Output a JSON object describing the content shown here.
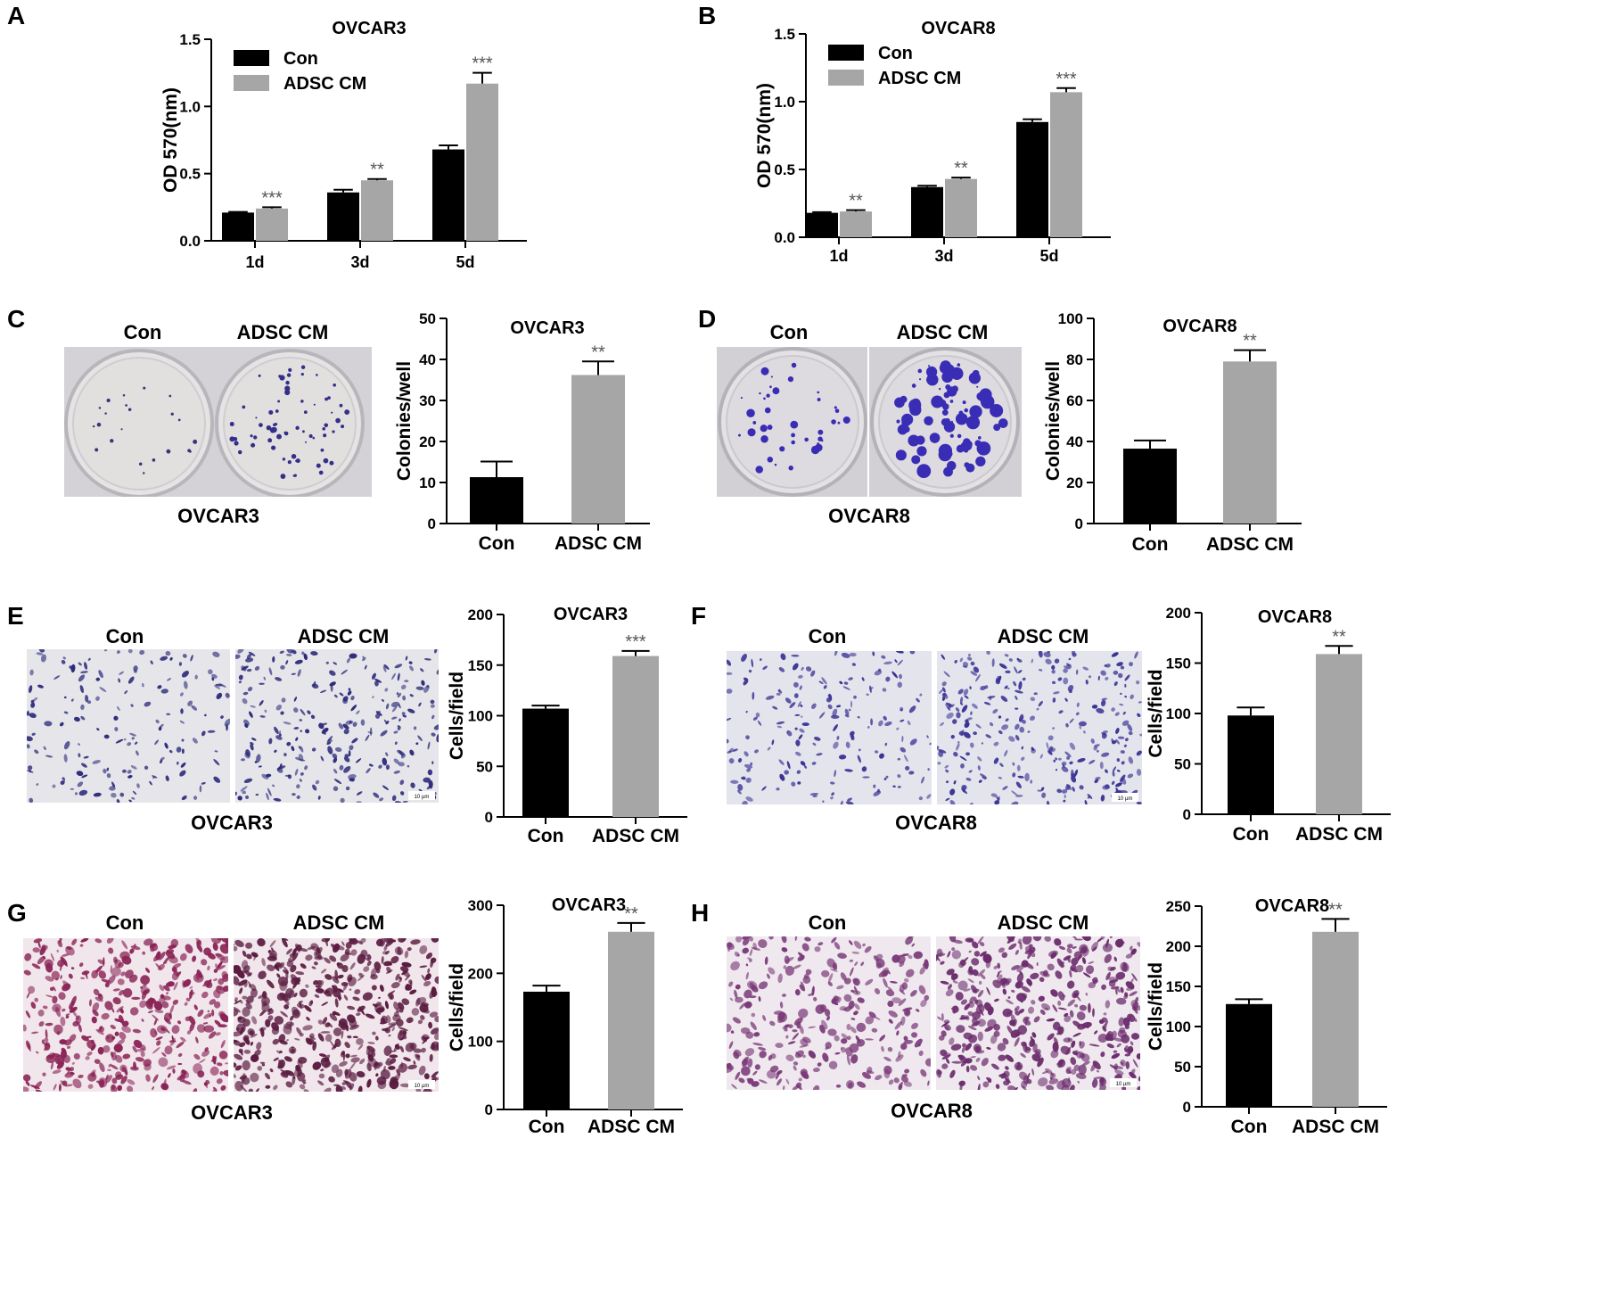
{
  "colors": {
    "con": "#000000",
    "adsc": "#a6a6a6",
    "stain_purple": "#3a2db5",
    "stain_pink": "#8a2456"
  },
  "panels": {
    "A": {
      "letter": "A"
    },
    "B": {
      "letter": "B"
    },
    "C": {
      "letter": "C",
      "photo_left": "Con",
      "photo_right": "ADSC CM",
      "photo_caption": "OVCAR3"
    },
    "D": {
      "letter": "D",
      "photo_left": "Con",
      "photo_right": "ADSC CM",
      "photo_caption": "OVCAR8"
    },
    "E": {
      "letter": "E",
      "photo_left": "Con",
      "photo_right": "ADSC  CM",
      "photo_caption": "OVCAR3",
      "scale": "10 µm"
    },
    "F": {
      "letter": "F",
      "photo_left": "Con",
      "photo_right": "ADSC  CM",
      "photo_caption": "OVCAR8",
      "scale": "10 µm"
    },
    "G": {
      "letter": "G",
      "photo_left": "Con",
      "photo_right": "ADSC  CM",
      "photo_caption": "OVCAR3",
      "scale": "10 µm"
    },
    "H": {
      "letter": "H",
      "photo_left": "Con",
      "photo_right": "ADSC  CM",
      "photo_caption": "OVCAR8",
      "scale": "10 µm"
    }
  },
  "chart_data": [
    {
      "panel": "A",
      "type": "bar",
      "title": "OVCAR3",
      "ylabel": "OD 570(nm)",
      "categories": [
        "1d",
        "3d",
        "5d"
      ],
      "ylim": [
        0,
        1.5
      ],
      "yticks": [
        "0.0",
        "0.5",
        "1.0",
        "1.5"
      ],
      "legend": "top-left",
      "series": [
        {
          "name": "Con",
          "values": [
            0.21,
            0.36,
            0.68
          ],
          "errors": [
            0.005,
            0.02,
            0.03
          ]
        },
        {
          "name": "ADSC CM",
          "values": [
            0.24,
            0.45,
            1.17
          ],
          "errors": [
            0.01,
            0.01,
            0.08
          ]
        }
      ],
      "significance": [
        "***",
        "**",
        "***"
      ]
    },
    {
      "panel": "B",
      "type": "bar",
      "title": "OVCAR8",
      "ylabel": "OD 570(nm)",
      "categories": [
        "1d",
        "3d",
        "5d"
      ],
      "ylim": [
        0,
        1.5
      ],
      "yticks": [
        "0.0",
        "0.5",
        "1.0",
        "1.5"
      ],
      "legend": "top-left",
      "series": [
        {
          "name": "Con",
          "values": [
            0.18,
            0.37,
            0.85
          ],
          "errors": [
            0.005,
            0.01,
            0.02
          ]
        },
        {
          "name": "ADSC CM",
          "values": [
            0.19,
            0.43,
            1.07
          ],
          "errors": [
            0.01,
            0.01,
            0.03
          ]
        }
      ],
      "significance": [
        "**",
        "**",
        "***"
      ]
    },
    {
      "panel": "C",
      "type": "bar",
      "title": "OVCAR3",
      "ylabel": "Colonies/well",
      "categories": [
        "Con",
        "ADSC CM"
      ],
      "values": [
        11.3,
        36.2
      ],
      "errors": [
        3.8,
        3.3
      ],
      "ylim": [
        0,
        50
      ],
      "yticks": [
        "0",
        "10",
        "20",
        "30",
        "40",
        "50"
      ],
      "significance": [
        "",
        "**"
      ]
    },
    {
      "panel": "D",
      "type": "bar",
      "title": "OVCAR8",
      "ylabel": "Colonies/well",
      "categories": [
        "Con",
        "ADSC CM"
      ],
      "values": [
        36.5,
        79
      ],
      "errors": [
        4,
        5.5
      ],
      "ylim": [
        0,
        100
      ],
      "yticks": [
        "0",
        "20",
        "40",
        "60",
        "80",
        "100"
      ],
      "significance": [
        "",
        "**"
      ]
    },
    {
      "panel": "E",
      "type": "bar",
      "title": "OVCAR3",
      "ylabel": "Cells/field",
      "categories": [
        "Con",
        "ADSC CM"
      ],
      "values": [
        107,
        159
      ],
      "errors": [
        3,
        5
      ],
      "ylim": [
        0,
        200
      ],
      "yticks": [
        "0",
        "50",
        "100",
        "150",
        "200"
      ],
      "significance": [
        "",
        "***"
      ]
    },
    {
      "panel": "F",
      "type": "bar",
      "title": "OVCAR8",
      "ylabel": "Cells/field",
      "categories": [
        "Con",
        "ADSC CM"
      ],
      "values": [
        98,
        159
      ],
      "errors": [
        8,
        8
      ],
      "ylim": [
        0,
        200
      ],
      "yticks": [
        "0",
        "50",
        "100",
        "150",
        "200"
      ],
      "significance": [
        "",
        "**"
      ]
    },
    {
      "panel": "G",
      "type": "bar",
      "title": "OVCAR3",
      "ylabel": "Cells/field",
      "categories": [
        "Con",
        "ADSC CM"
      ],
      "values": [
        173,
        261
      ],
      "errors": [
        9,
        13
      ],
      "ylim": [
        0,
        300
      ],
      "yticks": [
        "0",
        "100",
        "200",
        "300"
      ],
      "significance": [
        "",
        "**"
      ]
    },
    {
      "panel": "H",
      "type": "bar",
      "title": "OVCAR8",
      "ylabel": "Cells/field",
      "categories": [
        "Con",
        "ADSC CM"
      ],
      "values": [
        128,
        218
      ],
      "errors": [
        6,
        16
      ],
      "ylim": [
        0,
        250
      ],
      "yticks": [
        "0",
        "50",
        "100",
        "150",
        "200",
        "250"
      ],
      "significance": [
        "",
        "**"
      ]
    }
  ]
}
